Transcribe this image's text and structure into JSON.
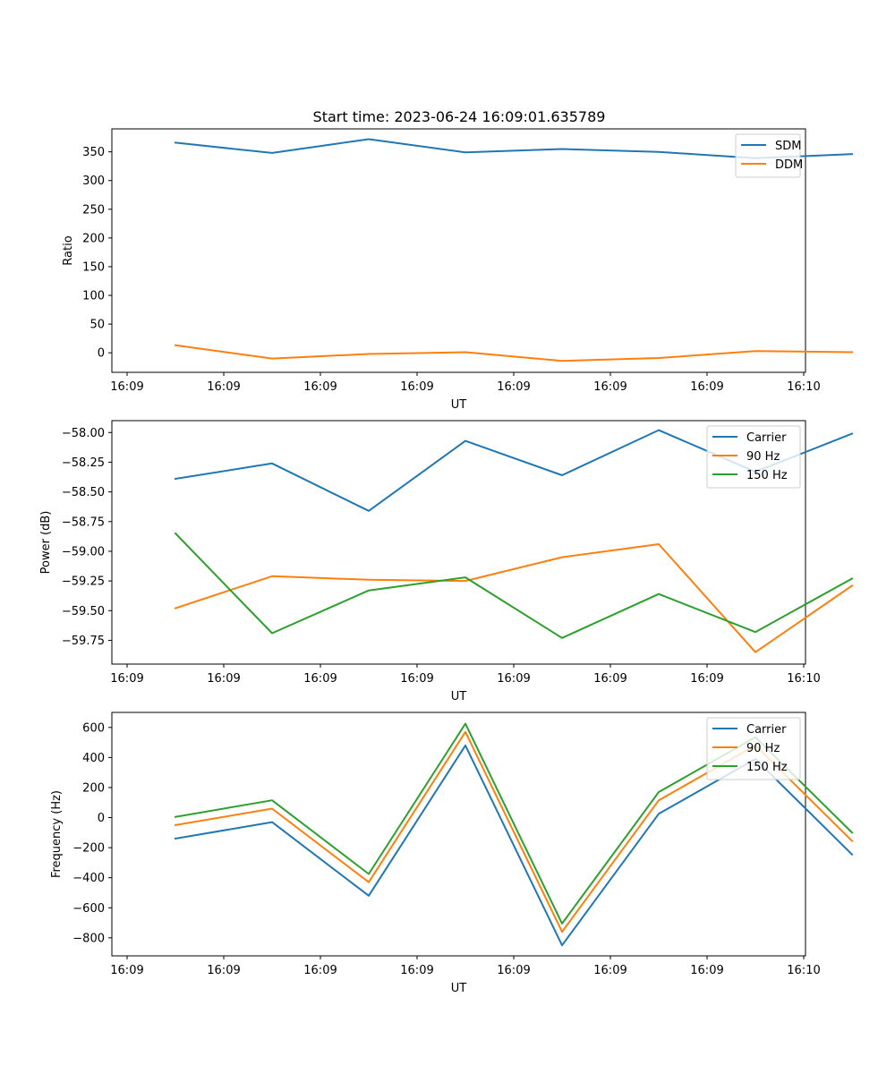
{
  "title": "Start time: 2023-06-24 16:09:01.635789",
  "colors": {
    "blue": "#1f77b4",
    "orange": "#ff7f0e",
    "green": "#2ca02c"
  },
  "chart_data": [
    {
      "type": "line",
      "title": "Start time: 2023-06-24 16:09:01.635789",
      "xlabel": "UT",
      "ylabel": "Ratio",
      "x_tick_labels": [
        "16:09",
        "16:09",
        "16:09",
        "16:09",
        "16:09",
        "16:09",
        "16:09",
        "16:10"
      ],
      "y_ticks": [
        0,
        50,
        100,
        150,
        200,
        250,
        300,
        350
      ],
      "y_tick_labels": [
        "0",
        "50",
        "100",
        "150",
        "200",
        "250",
        "300",
        "350"
      ],
      "ylim": [
        -34,
        390
      ],
      "grid": false,
      "legend_position": "top-right",
      "series": [
        {
          "name": "SDM",
          "color": "#1f77b4",
          "values": [
            366,
            348,
            372,
            349,
            355,
            350,
            339,
            346
          ]
        },
        {
          "name": "DDM",
          "color": "#ff7f0e",
          "values": [
            13,
            -10,
            -2,
            1,
            -14,
            -9,
            3,
            1
          ]
        }
      ]
    },
    {
      "type": "line",
      "xlabel": "UT",
      "ylabel": "Power (dB)",
      "x_tick_labels": [
        "16:09",
        "16:09",
        "16:09",
        "16:09",
        "16:09",
        "16:09",
        "16:09",
        "16:10"
      ],
      "y_ticks": [
        -59.75,
        -59.5,
        -59.25,
        -59.0,
        -58.75,
        -58.5,
        -58.25,
        -58.0
      ],
      "y_tick_labels": [
        "−59.75",
        "−59.50",
        "−59.25",
        "−59.00",
        "−58.75",
        "−58.50",
        "−58.25",
        "−58.00"
      ],
      "ylim": [
        -59.95,
        -57.9
      ],
      "grid": false,
      "legend_position": "top-right",
      "series": [
        {
          "name": "Carrier",
          "color": "#1f77b4",
          "values": [
            -58.39,
            -58.26,
            -58.66,
            -58.07,
            -58.36,
            -57.98,
            -58.33,
            -58.01
          ]
        },
        {
          "name": "90 Hz",
          "color": "#ff7f0e",
          "values": [
            -59.48,
            -59.21,
            -59.24,
            -59.25,
            -59.05,
            -58.94,
            -59.85,
            -59.29
          ]
        },
        {
          "name": "150 Hz",
          "color": "#2ca02c",
          "values": [
            -58.85,
            -59.69,
            -59.33,
            -59.22,
            -59.73,
            -59.36,
            -59.68,
            -59.23
          ]
        }
      ]
    },
    {
      "type": "line",
      "xlabel": "UT",
      "ylabel": "Frequency (Hz)",
      "x_tick_labels": [
        "16:09",
        "16:09",
        "16:09",
        "16:09",
        "16:09",
        "16:09",
        "16:09",
        "16:10"
      ],
      "y_ticks": [
        -800,
        -600,
        -400,
        -200,
        0,
        200,
        400,
        600
      ],
      "y_tick_labels": [
        "−800",
        "−600",
        "−400",
        "−200",
        "0",
        "200",
        "400",
        "600"
      ],
      "ylim": [
        -920,
        700
      ],
      "grid": false,
      "legend_position": "top-right",
      "series": [
        {
          "name": "Carrier",
          "color": "#1f77b4",
          "values": [
            -140,
            -30,
            -520,
            480,
            -850,
            25,
            390,
            -245
          ]
        },
        {
          "name": "90 Hz",
          "color": "#ff7f0e",
          "values": [
            -50,
            60,
            -430,
            570,
            -760,
            115,
            480,
            -155
          ]
        },
        {
          "name": "150 Hz",
          "color": "#2ca02c",
          "values": [
            5,
            115,
            -375,
            625,
            -705,
            170,
            535,
            -100
          ]
        }
      ]
    }
  ]
}
